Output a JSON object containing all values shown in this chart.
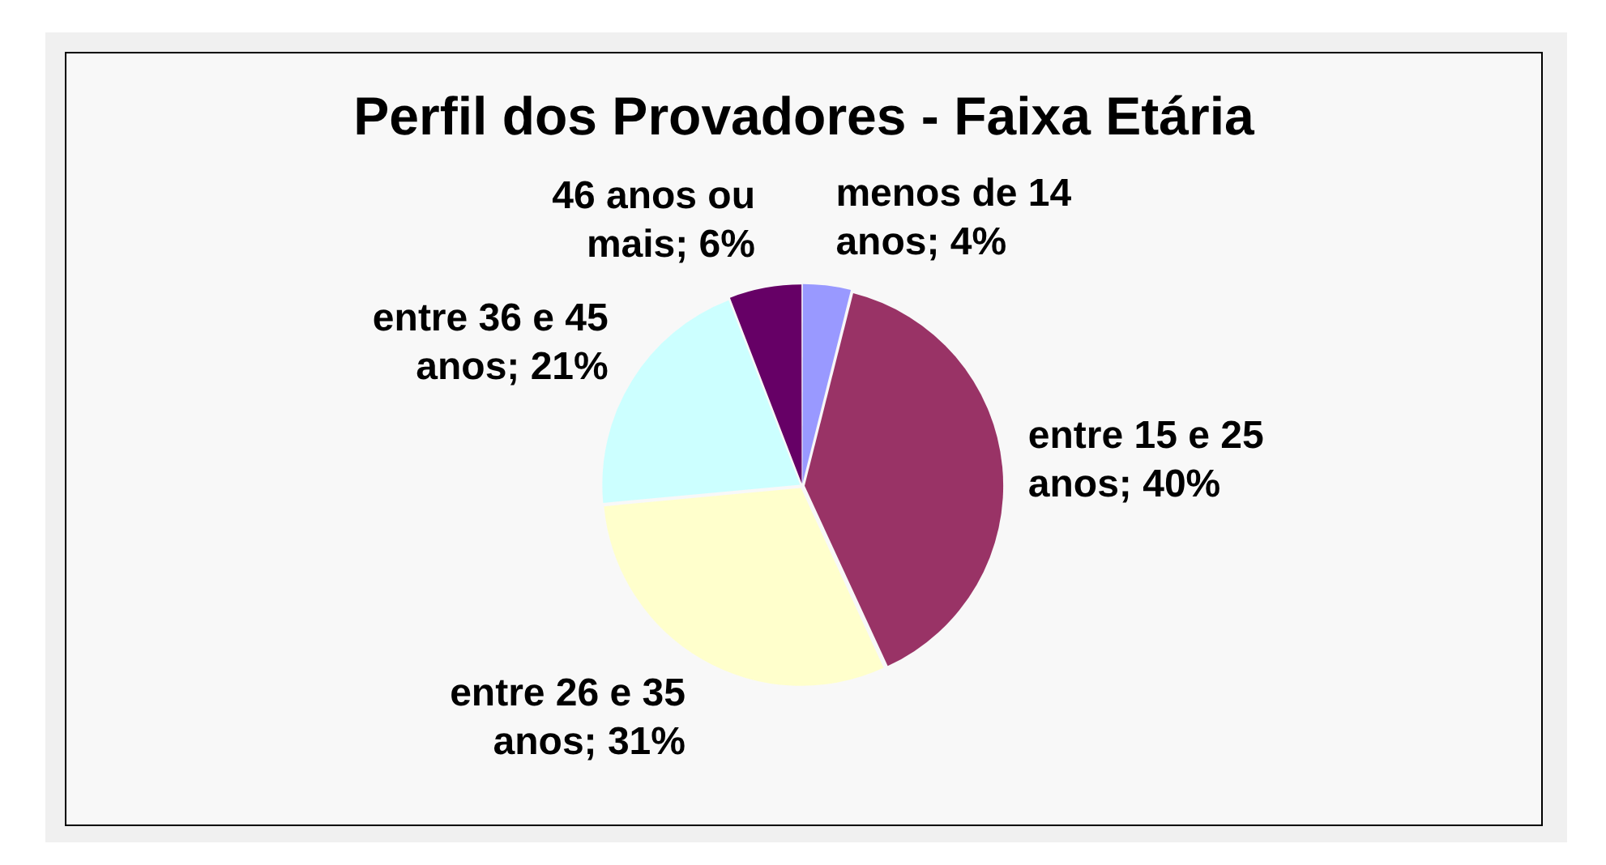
{
  "chart_data": {
    "type": "pie",
    "title": "Perfil dos Provadores - Faixa Etária",
    "categories": [
      "menos de 14 anos",
      "entre 15 e 25 anos",
      "entre 26 e 35 anos",
      "entre 36 e 45 anos",
      "46 anos ou mais"
    ],
    "values": [
      4,
      40,
      31,
      21,
      6
    ],
    "value_labels": [
      "4%",
      "40%",
      "31%",
      "21%",
      "6%"
    ],
    "colors": [
      "#9999ff",
      "#993366",
      "#ffffcc",
      "#ccffff",
      "#660066"
    ]
  }
}
